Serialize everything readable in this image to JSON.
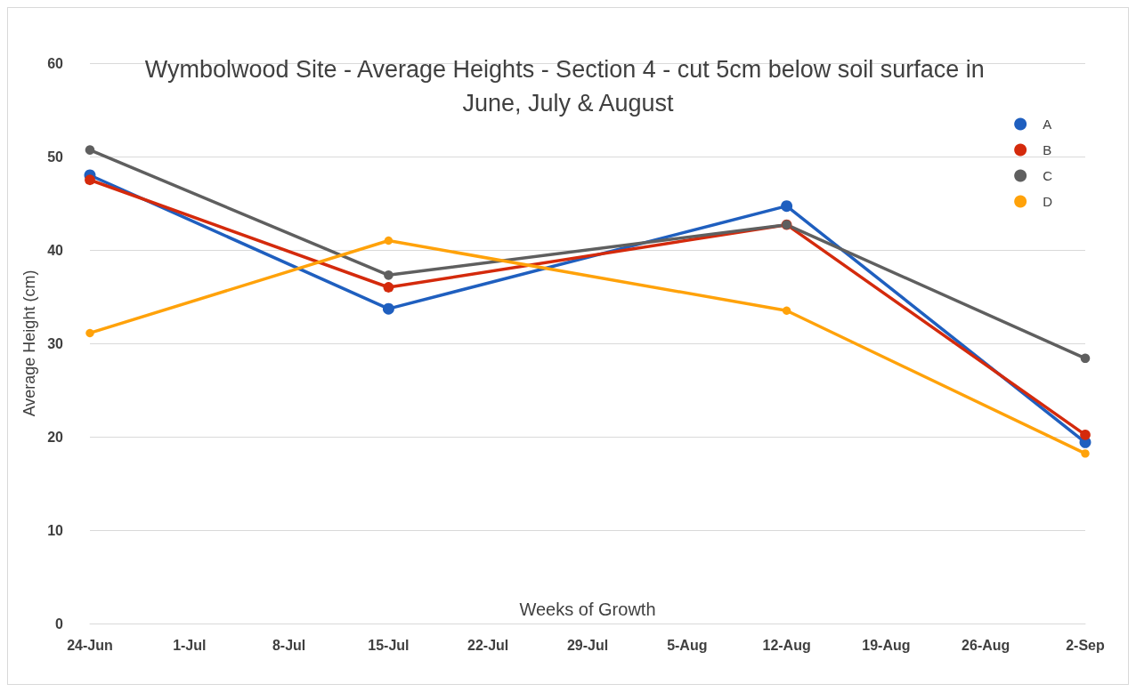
{
  "chart_data": {
    "type": "line",
    "title": "Wymbolwood Site - Average Heights - Section 4 - cut 5cm below soil surface in June, July & August",
    "xlabel": "Weeks of Growth",
    "ylabel": "Average Height (cm)",
    "categories": [
      "24-Jun",
      "1-Jul",
      "8-Jul",
      "15-Jul",
      "22-Jul",
      "29-Jul",
      "5-Aug",
      "12-Aug",
      "19-Aug",
      "26-Aug",
      "2-Sep"
    ],
    "series": [
      {
        "name": "A",
        "color": "#1f5fbf",
        "values": [
          48.0,
          null,
          null,
          33.7,
          null,
          null,
          null,
          44.7,
          null,
          null,
          19.4
        ]
      },
      {
        "name": "B",
        "color": "#d42a0c",
        "values": [
          47.5,
          null,
          null,
          36.0,
          null,
          null,
          null,
          42.7,
          null,
          null,
          20.2
        ]
      },
      {
        "name": "C",
        "color": "#5f5f5f",
        "values": [
          50.7,
          null,
          null,
          37.3,
          null,
          null,
          null,
          42.7,
          null,
          null,
          28.4
        ]
      },
      {
        "name": "D",
        "color": "#ffa20a",
        "values": [
          31.1,
          null,
          null,
          41.0,
          null,
          null,
          null,
          33.5,
          null,
          null,
          18.2
        ]
      }
    ],
    "ylim": [
      0,
      60
    ],
    "yticks": [
      0,
      10,
      20,
      30,
      40,
      50,
      60
    ],
    "grid": "y",
    "legend": "top right",
    "marker": "circle",
    "line_style": "solid"
  }
}
